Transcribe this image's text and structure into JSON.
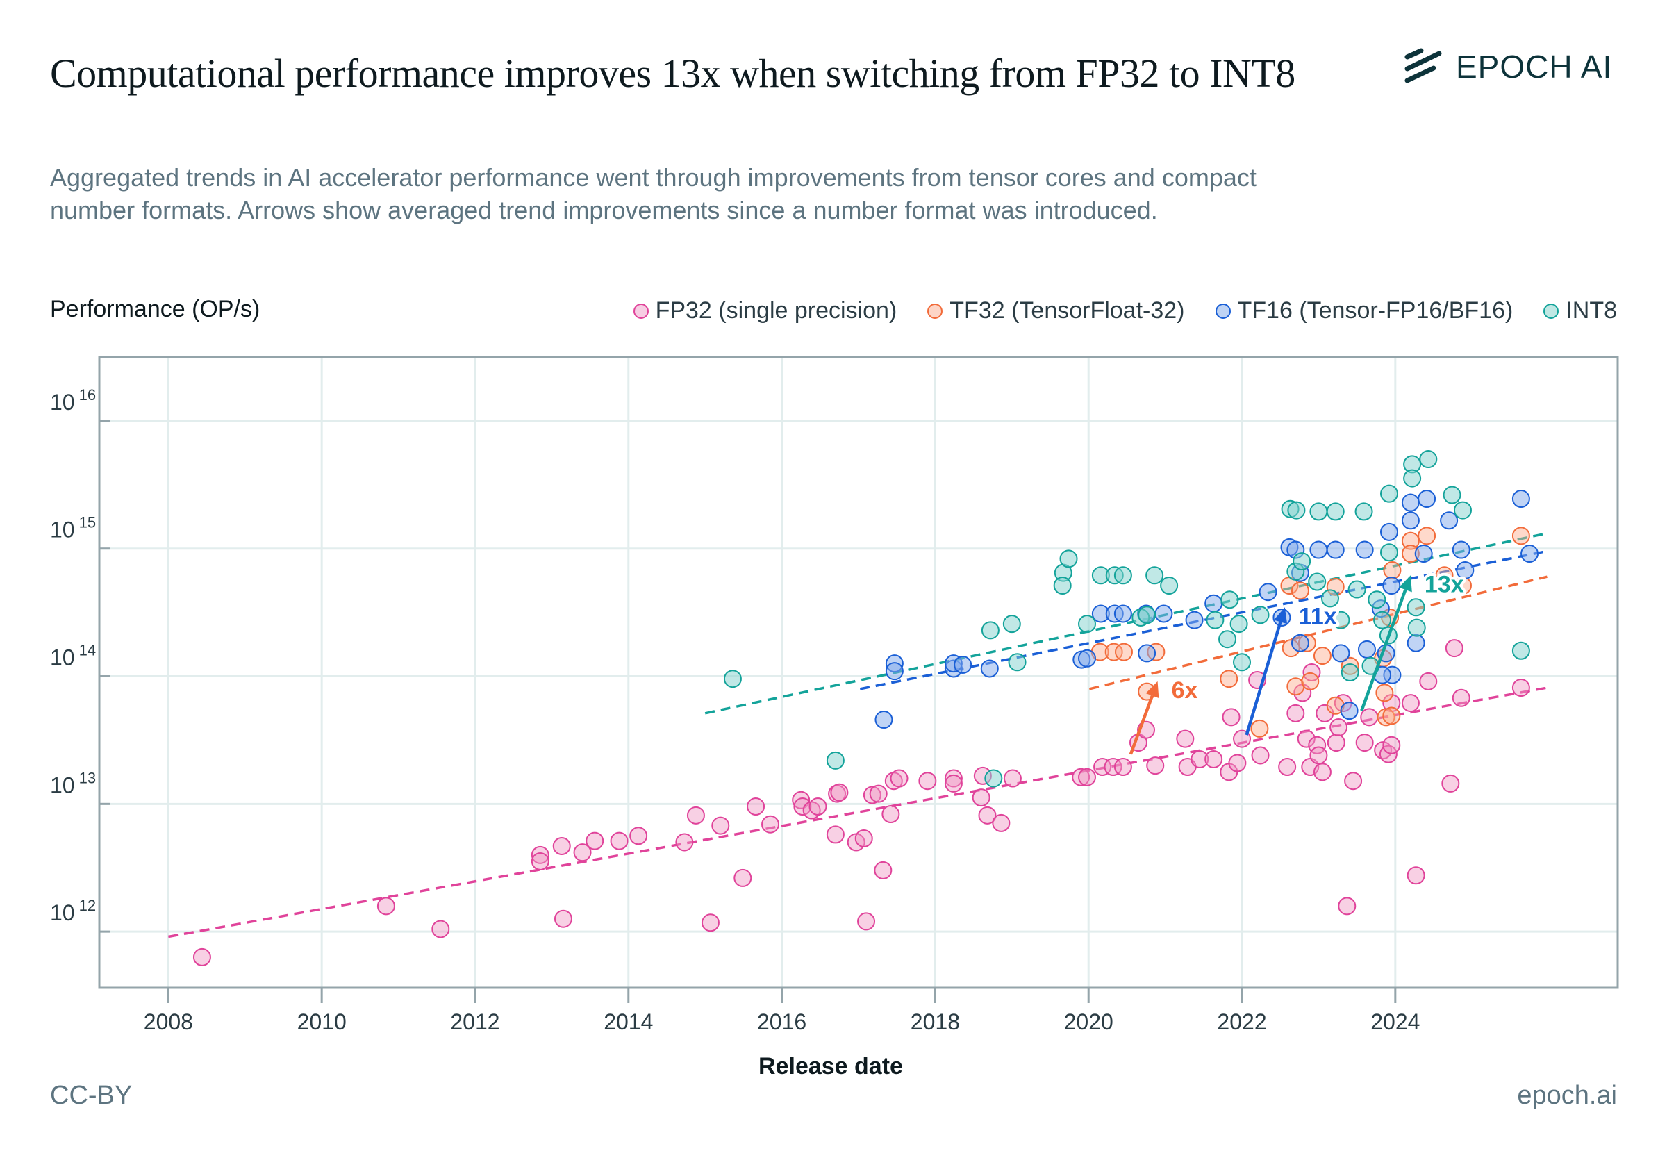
{
  "header": {
    "title": "Computational performance improves 13x when switching from FP32 to INT8",
    "subtitle": "Aggregated trends in AI accelerator performance went through improvements from tensor cores and compact number formats. Arrows show averaged trend improvements since a number format was introduced.",
    "logo_text": "EPOCH AI",
    "logo_icon": "epoch-stripes-icon"
  },
  "footer": {
    "license": "CC-BY",
    "site": "epoch.ai"
  },
  "colors": {
    "FP32": "#e0439a",
    "TF32": "#f26b3a",
    "TF16": "#1a5fd6",
    "INT8": "#13a39a"
  },
  "chart_data": {
    "type": "scatter",
    "title": "Computational performance improves 13x when switching from FP32 to INT8",
    "xlabel": "Release date",
    "ylabel": "Performance (OP/s)",
    "y_scale": "log10",
    "xlim": [
      2007.1,
      2026.9
    ],
    "ylim_log10": [
      11.56,
      16.5
    ],
    "x_ticks": [
      2008,
      2010,
      2012,
      2014,
      2016,
      2018,
      2020,
      2022,
      2024
    ],
    "y_ticks_log10": [
      12,
      13,
      14,
      15,
      16
    ],
    "y_tick_base": "10",
    "grid": true,
    "legend_position": "top-right",
    "point_format": "[release_year, log10(OP/s)]",
    "series": [
      {
        "name": "FP32",
        "label": "FP32 (single precision)",
        "points": [
          [
            2008.44,
            11.8
          ],
          [
            2010.84,
            12.2
          ],
          [
            2011.55,
            12.02
          ],
          [
            2012.85,
            12.6
          ],
          [
            2012.85,
            12.55
          ],
          [
            2013.13,
            12.67
          ],
          [
            2013.15,
            12.1
          ],
          [
            2013.4,
            12.62
          ],
          [
            2013.56,
            12.71
          ],
          [
            2013.88,
            12.71
          ],
          [
            2014.13,
            12.75
          ],
          [
            2014.73,
            12.7
          ],
          [
            2014.88,
            12.91
          ],
          [
            2015.07,
            12.07
          ],
          [
            2015.2,
            12.83
          ],
          [
            2015.49,
            12.42
          ],
          [
            2015.66,
            12.98
          ],
          [
            2015.85,
            12.84
          ],
          [
            2016.25,
            13.03
          ],
          [
            2016.27,
            12.98
          ],
          [
            2016.39,
            12.95
          ],
          [
            2016.47,
            12.98
          ],
          [
            2016.7,
            12.76
          ],
          [
            2016.72,
            13.08
          ],
          [
            2016.75,
            13.09
          ],
          [
            2016.97,
            12.7
          ],
          [
            2017.07,
            12.73
          ],
          [
            2017.1,
            12.08
          ],
          [
            2017.18,
            13.07
          ],
          [
            2017.26,
            13.08
          ],
          [
            2017.32,
            12.48
          ],
          [
            2017.42,
            12.92
          ],
          [
            2017.46,
            13.18
          ],
          [
            2017.53,
            13.2
          ],
          [
            2017.9,
            13.18
          ],
          [
            2018.24,
            13.2
          ],
          [
            2018.24,
            13.16
          ],
          [
            2018.6,
            13.05
          ],
          [
            2018.62,
            13.22
          ],
          [
            2018.68,
            12.91
          ],
          [
            2018.86,
            12.85
          ],
          [
            2019.01,
            13.2
          ],
          [
            2019.9,
            13.21
          ],
          [
            2019.98,
            13.21
          ],
          [
            2020.18,
            13.29
          ],
          [
            2020.32,
            13.29
          ],
          [
            2020.45,
            13.29
          ],
          [
            2020.65,
            13.48
          ],
          [
            2020.75,
            13.58
          ],
          [
            2020.87,
            13.3
          ],
          [
            2021.26,
            13.51
          ],
          [
            2021.29,
            13.29
          ],
          [
            2021.45,
            13.35
          ],
          [
            2021.63,
            13.35
          ],
          [
            2021.83,
            13.25
          ],
          [
            2021.86,
            13.68
          ],
          [
            2021.94,
            13.32
          ],
          [
            2022.0,
            13.51
          ],
          [
            2022.2,
            13.97
          ],
          [
            2022.24,
            13.38
          ],
          [
            2022.59,
            13.29
          ],
          [
            2022.7,
            13.71
          ],
          [
            2022.79,
            13.87
          ],
          [
            2022.84,
            13.51
          ],
          [
            2022.89,
            13.29
          ],
          [
            2022.91,
            14.03
          ],
          [
            2022.98,
            13.46
          ],
          [
            2023.0,
            13.38
          ],
          [
            2023.05,
            13.25
          ],
          [
            2023.08,
            13.71
          ],
          [
            2023.23,
            13.48
          ],
          [
            2023.26,
            13.6
          ],
          [
            2023.32,
            13.79
          ],
          [
            2023.37,
            12.2
          ],
          [
            2023.45,
            13.18
          ],
          [
            2023.6,
            13.48
          ],
          [
            2023.66,
            13.68
          ],
          [
            2023.84,
            13.42
          ],
          [
            2023.91,
            13.39
          ],
          [
            2023.95,
            13.46
          ],
          [
            2023.95,
            13.79
          ],
          [
            2024.2,
            13.79
          ],
          [
            2024.27,
            12.44
          ],
          [
            2024.43,
            13.96
          ],
          [
            2024.72,
            13.16
          ],
          [
            2024.77,
            14.22
          ],
          [
            2024.86,
            13.83
          ],
          [
            2025.64,
            13.91
          ]
        ],
        "trend": [
          [
            2008.0,
            11.96
          ],
          [
            2025.98,
            13.91
          ]
        ]
      },
      {
        "name": "TF32",
        "label": "TF32 (TensorFloat-32)",
        "points": [
          [
            2020.15,
            14.19
          ],
          [
            2020.33,
            14.19
          ],
          [
            2020.46,
            14.19
          ],
          [
            2020.88,
            14.19
          ],
          [
            2020.76,
            13.88
          ],
          [
            2021.83,
            13.98
          ],
          [
            2022.23,
            13.59
          ],
          [
            2022.62,
            14.71
          ],
          [
            2022.76,
            14.67
          ],
          [
            2022.64,
            14.22
          ],
          [
            2022.7,
            13.92
          ],
          [
            2022.85,
            14.26
          ],
          [
            2022.89,
            13.96
          ],
          [
            2023.05,
            14.16
          ],
          [
            2023.22,
            14.7
          ],
          [
            2023.22,
            13.77
          ],
          [
            2023.41,
            14.08
          ],
          [
            2023.84,
            14.14
          ],
          [
            2023.86,
            13.87
          ],
          [
            2023.93,
            14.46
          ],
          [
            2023.88,
            13.68
          ],
          [
            2023.95,
            13.69
          ],
          [
            2024.2,
            15.06
          ],
          [
            2024.2,
            14.96
          ],
          [
            2024.41,
            15.1
          ],
          [
            2024.64,
            14.79
          ],
          [
            2024.88,
            14.71
          ],
          [
            2025.64,
            15.1
          ],
          [
            2023.96,
            14.83
          ]
        ],
        "trend": [
          [
            2020.01,
            13.9
          ],
          [
            2025.98,
            14.78
          ]
        ]
      },
      {
        "name": "TF16",
        "label": "TF16 (Tensor-FP16/BF16)",
        "points": [
          [
            2017.33,
            13.66
          ],
          [
            2017.47,
            14.1
          ],
          [
            2017.47,
            14.04
          ],
          [
            2018.24,
            14.06
          ],
          [
            2018.24,
            14.1
          ],
          [
            2018.36,
            14.09
          ],
          [
            2018.71,
            14.06
          ],
          [
            2019.91,
            14.13
          ],
          [
            2019.98,
            14.14
          ],
          [
            2020.16,
            14.49
          ],
          [
            2020.34,
            14.49
          ],
          [
            2020.45,
            14.49
          ],
          [
            2020.75,
            14.49
          ],
          [
            2020.76,
            14.18
          ],
          [
            2020.98,
            14.49
          ],
          [
            2021.38,
            14.44
          ],
          [
            2021.63,
            14.57
          ],
          [
            2022.34,
            14.66
          ],
          [
            2022.62,
            15.01
          ],
          [
            2022.7,
            14.99
          ],
          [
            2022.76,
            14.81
          ],
          [
            2023.0,
            14.99
          ],
          [
            2023.22,
            14.99
          ],
          [
            2023.6,
            14.99
          ],
          [
            2022.52,
            14.46
          ],
          [
            2022.76,
            14.26
          ],
          [
            2023.29,
            14.18
          ],
          [
            2023.63,
            14.21
          ],
          [
            2023.81,
            14.53
          ],
          [
            2023.88,
            14.18
          ],
          [
            2023.92,
            15.13
          ],
          [
            2023.95,
            14.71
          ],
          [
            2023.96,
            14.01
          ],
          [
            2024.2,
            15.36
          ],
          [
            2024.2,
            15.22
          ],
          [
            2024.41,
            15.39
          ],
          [
            2024.37,
            14.96
          ],
          [
            2024.27,
            14.26
          ],
          [
            2024.7,
            15.22
          ],
          [
            2024.86,
            14.99
          ],
          [
            2024.91,
            14.83
          ],
          [
            2025.64,
            15.39
          ],
          [
            2025.75,
            14.96
          ],
          [
            2023.4,
            13.73
          ],
          [
            2023.83,
            14.01
          ]
        ],
        "trend": [
          [
            2017.02,
            13.9
          ],
          [
            2025.98,
            14.98
          ]
        ]
      },
      {
        "name": "INT8",
        "label": "INT8",
        "points": [
          [
            2015.36,
            13.98
          ],
          [
            2016.7,
            13.34
          ],
          [
            2019.67,
            14.81
          ],
          [
            2019.66,
            14.71
          ],
          [
            2019.74,
            14.92
          ],
          [
            2019.98,
            14.41
          ],
          [
            2020.16,
            14.79
          ],
          [
            2020.34,
            14.79
          ],
          [
            2020.45,
            14.79
          ],
          [
            2020.86,
            14.79
          ],
          [
            2021.05,
            14.71
          ],
          [
            2020.68,
            14.46
          ],
          [
            2020.76,
            14.48
          ],
          [
            2018.72,
            14.36
          ],
          [
            2019.0,
            14.41
          ],
          [
            2019.07,
            14.11
          ],
          [
            2018.76,
            13.2
          ],
          [
            2021.65,
            14.44
          ],
          [
            2021.81,
            14.29
          ],
          [
            2021.84,
            14.6
          ],
          [
            2021.96,
            14.41
          ],
          [
            2022.0,
            14.11
          ],
          [
            2022.24,
            14.48
          ],
          [
            2022.63,
            15.31
          ],
          [
            2022.71,
            15.3
          ],
          [
            2023.0,
            15.29
          ],
          [
            2023.22,
            15.29
          ],
          [
            2023.59,
            15.29
          ],
          [
            2022.7,
            14.82
          ],
          [
            2022.78,
            14.9
          ],
          [
            2022.98,
            14.74
          ],
          [
            2023.15,
            14.61
          ],
          [
            2023.29,
            14.44
          ],
          [
            2023.5,
            14.68
          ],
          [
            2023.76,
            14.6
          ],
          [
            2023.83,
            14.44
          ],
          [
            2023.92,
            15.43
          ],
          [
            2023.92,
            14.97
          ],
          [
            2023.91,
            14.32
          ],
          [
            2023.41,
            14.03
          ],
          [
            2023.68,
            14.08
          ],
          [
            2024.22,
            15.66
          ],
          [
            2024.22,
            15.55
          ],
          [
            2024.43,
            15.7
          ],
          [
            2024.27,
            14.54
          ],
          [
            2024.28,
            14.38
          ],
          [
            2024.74,
            15.42
          ],
          [
            2024.88,
            15.3
          ],
          [
            2025.64,
            14.2
          ]
        ],
        "trend": [
          [
            2015.0,
            13.71
          ],
          [
            2025.98,
            15.12
          ]
        ]
      }
    ],
    "annotations": [
      {
        "label": "6x",
        "series": "TF32",
        "from": [
          2020.55,
          13.39
        ],
        "to": [
          2020.9,
          13.96
        ]
      },
      {
        "label": "11x",
        "series": "TF16",
        "from": [
          2022.06,
          13.54
        ],
        "to": [
          2022.56,
          14.54
        ]
      },
      {
        "label": "13x",
        "series": "INT8",
        "from": [
          2023.56,
          13.73
        ],
        "to": [
          2024.2,
          14.79
        ]
      }
    ]
  }
}
